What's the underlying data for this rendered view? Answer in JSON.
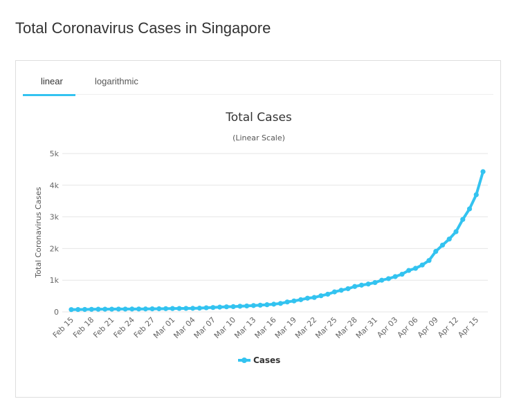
{
  "page": {
    "title": "Total Coronavirus Cases in Singapore"
  },
  "tabs": [
    {
      "label": "linear",
      "active": true
    },
    {
      "label": "logarithmic",
      "active": false
    }
  ],
  "colors": {
    "accent": "#33c3f0",
    "grid": "#e6e6e6",
    "text": "#333333",
    "tick": "#666666"
  },
  "chart_data": {
    "type": "line",
    "title": "Total Cases",
    "subtitle": "(Linear Scale)",
    "ylabel": "Total Coronavirus Cases",
    "xlabel": "",
    "ylim": [
      0,
      5000
    ],
    "yticks": [
      {
        "value": 0,
        "label": "0"
      },
      {
        "value": 1000,
        "label": "1k"
      },
      {
        "value": 2000,
        "label": "2k"
      },
      {
        "value": 3000,
        "label": "3k"
      },
      {
        "value": 4000,
        "label": "4k"
      },
      {
        "value": 5000,
        "label": "5k"
      }
    ],
    "grid": true,
    "legend_position": "bottom",
    "x": [
      "Feb 15",
      "Feb 16",
      "Feb 17",
      "Feb 18",
      "Feb 19",
      "Feb 20",
      "Feb 21",
      "Feb 22",
      "Feb 23",
      "Feb 24",
      "Feb 25",
      "Feb 26",
      "Feb 27",
      "Feb 28",
      "Feb 29",
      "Mar 01",
      "Mar 02",
      "Mar 03",
      "Mar 04",
      "Mar 05",
      "Mar 06",
      "Mar 07",
      "Mar 08",
      "Mar 09",
      "Mar 10",
      "Mar 11",
      "Mar 12",
      "Mar 13",
      "Mar 14",
      "Mar 15",
      "Mar 16",
      "Mar 17",
      "Mar 18",
      "Mar 19",
      "Mar 20",
      "Mar 21",
      "Mar 22",
      "Mar 23",
      "Mar 24",
      "Mar 25",
      "Mar 26",
      "Mar 27",
      "Mar 28",
      "Mar 29",
      "Mar 30",
      "Mar 31",
      "Apr 01",
      "Apr 02",
      "Apr 03",
      "Apr 04",
      "Apr 05",
      "Apr 06",
      "Apr 07",
      "Apr 08",
      "Apr 09",
      "Apr 10",
      "Apr 11",
      "Apr 12",
      "Apr 13",
      "Apr 14",
      "Apr 15",
      "Apr 16"
    ],
    "xticks": [
      "Feb 15",
      "Feb 18",
      "Feb 21",
      "Feb 24",
      "Feb 27",
      "Mar 01",
      "Mar 04",
      "Mar 07",
      "Mar 10",
      "Mar 13",
      "Mar 16",
      "Mar 19",
      "Mar 22",
      "Mar 25",
      "Mar 28",
      "Mar 31",
      "Apr 03",
      "Apr 06",
      "Apr 09",
      "Apr 12",
      "Apr 15"
    ],
    "series": [
      {
        "name": "Cases",
        "color": "#33c3f0",
        "values": [
          72,
          75,
          77,
          81,
          84,
          85,
          86,
          89,
          89,
          90,
          91,
          93,
          96,
          98,
          102,
          106,
          108,
          110,
          112,
          117,
          130,
          138,
          150,
          160,
          166,
          178,
          187,
          200,
          212,
          226,
          243,
          266,
          313,
          345,
          385,
          432,
          455,
          509,
          558,
          631,
          683,
          732,
          802,
          844,
          879,
          926,
          1000,
          1049,
          1114,
          1189,
          1309,
          1375,
          1481,
          1623,
          1910,
          2108,
          2299,
          2532,
          2918,
          3252,
          3699,
          4427
        ]
      }
    ]
  }
}
